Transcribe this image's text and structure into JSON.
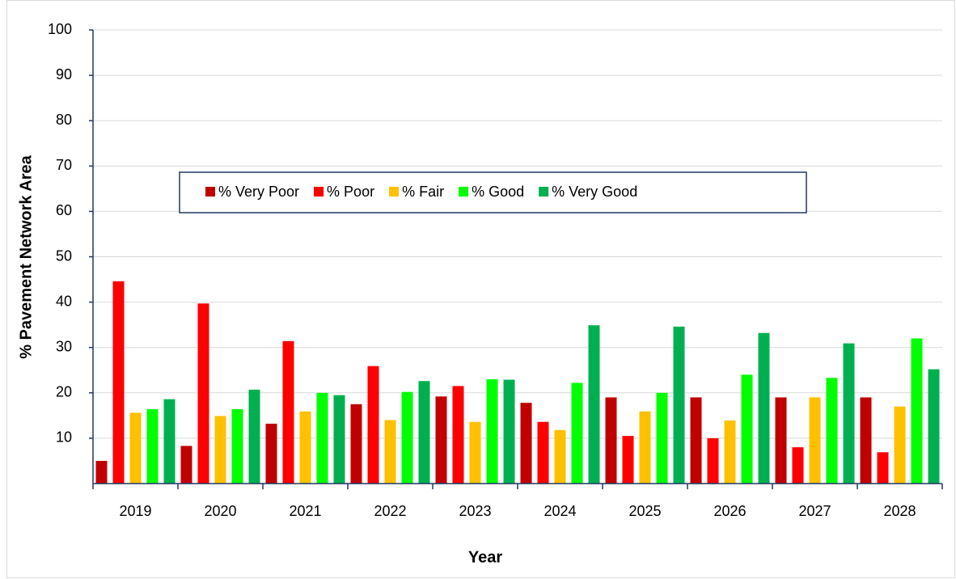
{
  "chart_data": {
    "type": "bar",
    "y_label": "% Pavement Network Area",
    "x_label": "Year",
    "categories": [
      "2019",
      "2020",
      "2021",
      "2022",
      "2023",
      "2024",
      "2025",
      "2026",
      "2027",
      "2028"
    ],
    "series": [
      {
        "name": "% Very Poor",
        "color": "#c00000",
        "values": [
          5,
          8.3,
          13.2,
          17.5,
          19.2,
          17.8,
          19,
          19,
          19,
          19
        ]
      },
      {
        "name": "% Poor",
        "color": "#ff0000",
        "values": [
          44.6,
          39.7,
          31.4,
          25.9,
          21.5,
          13.6,
          10.5,
          10,
          8,
          6.9
        ]
      },
      {
        "name": "% Fair",
        "color": "#ffc000",
        "values": [
          15.6,
          14.9,
          15.9,
          14,
          13.6,
          11.8,
          15.9,
          13.9,
          19,
          17
        ]
      },
      {
        "name": "% Good",
        "color": "#00ff00",
        "values": [
          16.4,
          16.4,
          20,
          20.2,
          23,
          22.2,
          20,
          24,
          23.3,
          32
        ]
      },
      {
        "name": "% Very Good",
        "color": "#00b050",
        "values": [
          18.6,
          20.7,
          19.5,
          22.6,
          22.9,
          34.9,
          34.6,
          33.2,
          30.9,
          25.2
        ]
      }
    ],
    "ylim": [
      0,
      100
    ],
    "yticks": [
      10,
      20,
      30,
      40,
      50,
      60,
      70,
      80,
      90,
      100
    ],
    "grid": true,
    "legend": "center"
  }
}
